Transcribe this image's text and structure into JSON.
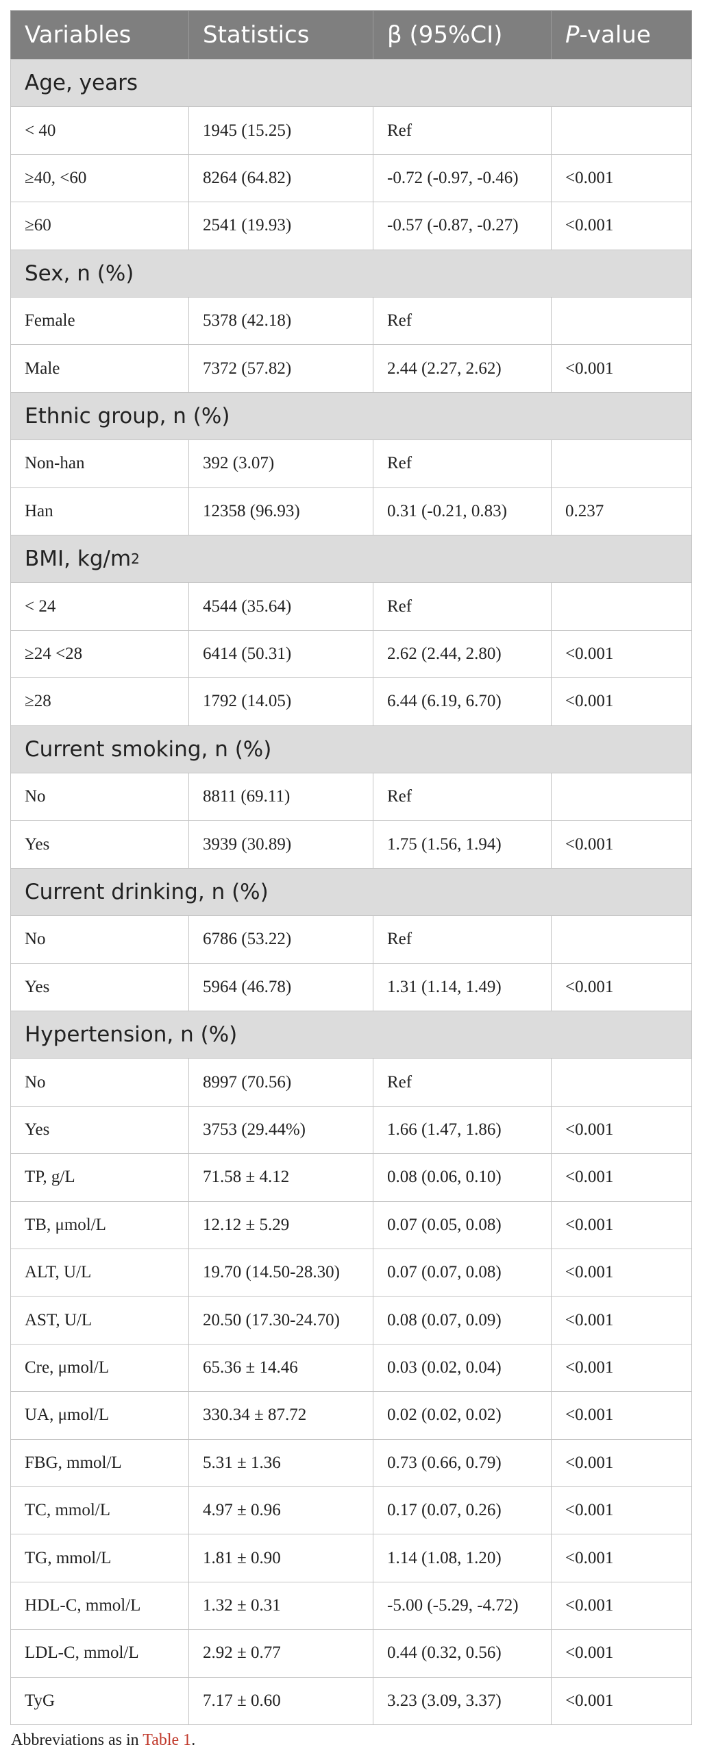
{
  "table": {
    "header": {
      "variables": "Variables",
      "statistics": "Statistics",
      "beta": "β (95%CI)",
      "p_italic": "P",
      "p_rest": "-value"
    },
    "sections": [
      {
        "title": "Age, years",
        "rows": [
          [
            "< 40",
            "1945 (15.25)",
            "Ref"
          ],
          [
            "≥40, <60",
            "8264 (64.82)",
            "-0.72 (-0.97, -0.46)",
            "<0.001"
          ],
          [
            "≥60",
            "2541 (19.93)",
            "-0.57 (-0.87, -0.27)",
            "<0.001"
          ]
        ]
      },
      {
        "title": "Sex, n (%)",
        "rows": [
          [
            "Female",
            "5378 (42.18)",
            "Ref"
          ],
          [
            "Male",
            "7372 (57.82)",
            "2.44 (2.27, 2.62)",
            "<0.001"
          ]
        ]
      },
      {
        "title": "Ethnic group, n (%)",
        "rows": [
          [
            "Non-han",
            "392 (3.07)",
            "Ref"
          ],
          [
            "Han",
            "12358 (96.93)",
            "0.31 (-0.21, 0.83)",
            "0.237"
          ]
        ]
      },
      {
        "title": "BMI, kg/m",
        "sup": "2",
        "rows": [
          [
            "< 24",
            "4544 (35.64)",
            "Ref"
          ],
          [
            "≥24 <28",
            "6414 (50.31)",
            "2.62 (2.44, 2.80)",
            "<0.001"
          ],
          [
            "≥28",
            "1792 (14.05)",
            "6.44 (6.19, 6.70)",
            "<0.001"
          ]
        ]
      },
      {
        "title": "Current smoking, n (%)",
        "rows": [
          [
            "No",
            "8811 (69.11)",
            "Ref"
          ],
          [
            "Yes",
            "3939 (30.89)",
            "1.75 (1.56, 1.94)",
            "<0.001"
          ]
        ]
      },
      {
        "title": "Current drinking, n (%)",
        "rows": [
          [
            "No",
            "6786 (53.22)",
            "Ref"
          ],
          [
            "Yes",
            "5964 (46.78)",
            "1.31 (1.14, 1.49)",
            "<0.001"
          ]
        ]
      },
      {
        "title": "Hypertension, n (%)",
        "rows": [
          [
            "No",
            "8997 (70.56)",
            "Ref"
          ],
          [
            "Yes",
            "3753 (29.44%)",
            "1.66 (1.47, 1.86)",
            "<0.001"
          ],
          [
            "TP, g/L",
            "71.58 ± 4.12",
            "0.08 (0.06, 0.10)",
            "<0.001"
          ],
          [
            "TB, μmol/L",
            "12.12 ± 5.29",
            "0.07 (0.05, 0.08)",
            "<0.001"
          ],
          [
            "ALT, U/L",
            "19.70 (14.50-28.30)",
            "0.07 (0.07, 0.08)",
            "<0.001"
          ],
          [
            "AST, U/L",
            "20.50 (17.30-24.70)",
            "0.08 (0.07, 0.09)",
            "<0.001"
          ],
          [
            "Cre, μmol/L",
            "65.36 ± 14.46",
            "0.03 (0.02, 0.04)",
            "<0.001"
          ],
          [
            "UA, μmol/L",
            "330.34 ± 87.72",
            "0.02 (0.02, 0.02)",
            "<0.001"
          ],
          [
            "FBG, mmol/L",
            "5.31 ± 1.36",
            "0.73 (0.66, 0.79)",
            "<0.001"
          ],
          [
            "TC, mmol/L",
            "4.97 ± 0.96",
            "0.17 (0.07, 0.26)",
            "<0.001"
          ],
          [
            "TG, mmol/L",
            "1.81 ± 0.90",
            "1.14 (1.08, 1.20)",
            "<0.001"
          ],
          [
            "HDL-C, mmol/L",
            "1.32 ± 0.31",
            "-5.00 (-5.29, -4.72)",
            "<0.001"
          ],
          [
            "LDL-C, mmol/L",
            "2.92 ± 0.77",
            "0.44 (0.32, 0.56)",
            "<0.001"
          ],
          [
            "TyG",
            "7.17 ± 0.60",
            "3.23 (3.09, 3.37)",
            "<0.001"
          ]
        ]
      }
    ]
  },
  "footnote": {
    "text": "Abbreviations as in",
    "link": "Table 1",
    "end": "."
  }
}
